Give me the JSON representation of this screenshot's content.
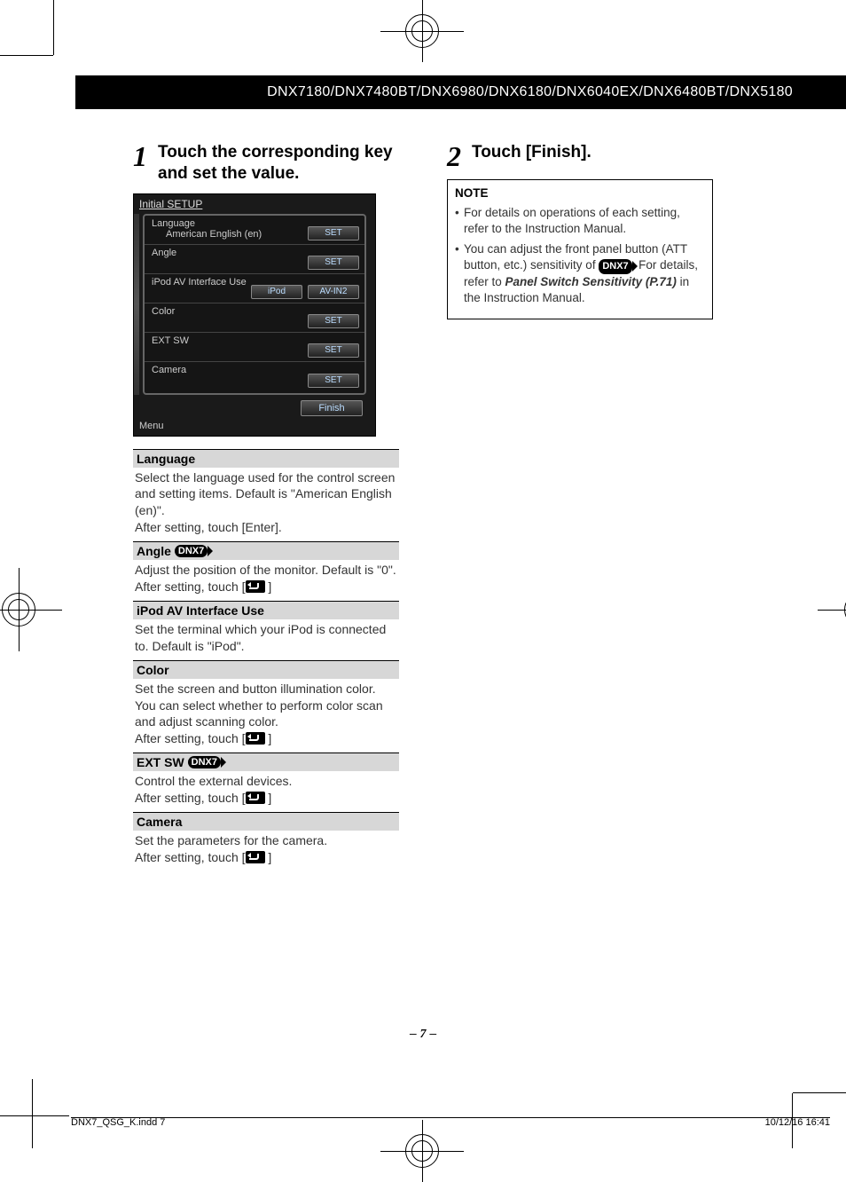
{
  "header": {
    "models": "DNX7180/DNX7480BT/DNX6980/DNX6180/DNX6040EX/DNX6480BT/DNX5180"
  },
  "steps": {
    "s1": {
      "num": "1",
      "title": "Touch the corresponding key and set the value."
    },
    "s2": {
      "num": "2",
      "title": "Touch [Finish]."
    }
  },
  "device": {
    "title": "Initial SETUP",
    "rows": [
      {
        "label": "Language",
        "value": "American English (en)",
        "btn": "SET"
      },
      {
        "label": "Angle",
        "value": "",
        "btn": "SET"
      },
      {
        "label": "iPod AV Interface Use",
        "value": "",
        "btn": "AV-IN2",
        "btn2": "iPod"
      },
      {
        "label": "Color",
        "value": "",
        "btn": "SET"
      },
      {
        "label": "EXT SW",
        "value": "",
        "btn": "SET"
      },
      {
        "label": "Camera",
        "value": "",
        "btn": "SET"
      }
    ],
    "finish": "Finish",
    "menu": "Menu"
  },
  "badge": "DNX7",
  "settings": [
    {
      "head": "Language",
      "body": "Select the language used for the control screen and setting items. Default is \"American English (en)\".",
      "after": "After setting, touch [Enter].",
      "badge": false,
      "icon": false
    },
    {
      "head": "Angle",
      "body": "Adjust the position of the monitor. Default is \"0\".",
      "after": "After setting, touch [",
      "badge": true,
      "icon": true,
      "after2": "]"
    },
    {
      "head": "iPod AV Interface Use",
      "body": "Set the terminal which your iPod is connected to. Default is \"iPod\".",
      "after": "",
      "badge": false,
      "icon": false
    },
    {
      "head": "Color",
      "body": "Set the screen and button illumination color. You can select whether to perform color scan and adjust scanning color.",
      "after": "After setting, touch [",
      "badge": false,
      "icon": true,
      "after2": "]"
    },
    {
      "head": "EXT SW",
      "body": "Control the external devices.",
      "after": "After setting, touch [",
      "badge": true,
      "icon": true,
      "after2": "]"
    },
    {
      "head": "Camera",
      "body": "Set the parameters for the camera.",
      "after": "After setting, touch [",
      "badge": false,
      "icon": true,
      "after2": "]"
    }
  ],
  "note": {
    "title": "NOTE",
    "items": [
      {
        "t1": "For details on operations of each setting, refer to the Instruction Manual."
      },
      {
        "t1": "You can adjust the front panel button (ATT button, etc.) sensitivity of ",
        "badge": true,
        "t2": ". For details, refer to ",
        "bi": "Panel Switch Sensitivity (P.71)",
        "t3": " in the Instruction Manual."
      }
    ]
  },
  "page_number": "7",
  "footer": {
    "left": "DNX7_QSG_K.indd   7",
    "right": "10/12/16   16:41"
  }
}
